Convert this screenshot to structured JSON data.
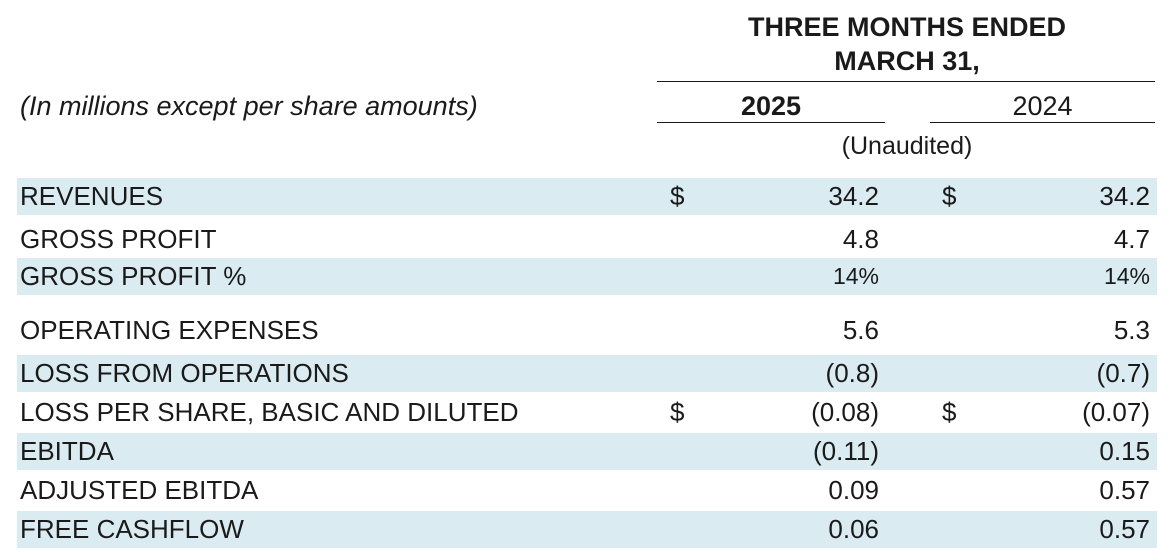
{
  "header": {
    "period_line1": "THREE MONTHS ENDED",
    "period_line2": "MARCH 31,",
    "units_label": "(In millions except per share amounts)",
    "year1": "2025",
    "year2": "2024",
    "audit_note": "(Unaudited)"
  },
  "colors": {
    "band": "#daebf1",
    "text": "#1a1a1a"
  },
  "rows": [
    {
      "label": "REVENUES",
      "cur1": "$",
      "val1": "34.2",
      "cur2": "$",
      "val2": "34.2"
    },
    {
      "label": "GROSS PROFIT",
      "cur1": "",
      "val1": "4.8",
      "cur2": "",
      "val2": "4.7"
    },
    {
      "label": "GROSS PROFIT %",
      "cur1": "",
      "val1": "14%",
      "cur2": "",
      "val2": "14%"
    },
    {
      "label": "OPERATING EXPENSES",
      "cur1": "",
      "val1": "5.6",
      "cur2": "",
      "val2": "5.3"
    },
    {
      "label": "LOSS FROM OPERATIONS",
      "cur1": "",
      "val1": "(0.8)",
      "cur2": "",
      "val2": "(0.7)"
    },
    {
      "label": "LOSS PER SHARE, BASIC AND DILUTED",
      "cur1": "$",
      "val1": "(0.08)",
      "cur2": "$",
      "val2": "(0.07)"
    },
    {
      "label": "EBITDA",
      "cur1": "",
      "val1": "(0.11)",
      "cur2": "",
      "val2": "0.15"
    },
    {
      "label": "ADJUSTED EBITDA",
      "cur1": "",
      "val1": "0.09",
      "cur2": "",
      "val2": "0.57"
    },
    {
      "label": "FREE CASHFLOW",
      "cur1": "",
      "val1": "0.06",
      "cur2": "",
      "val2": "0.57"
    }
  ]
}
